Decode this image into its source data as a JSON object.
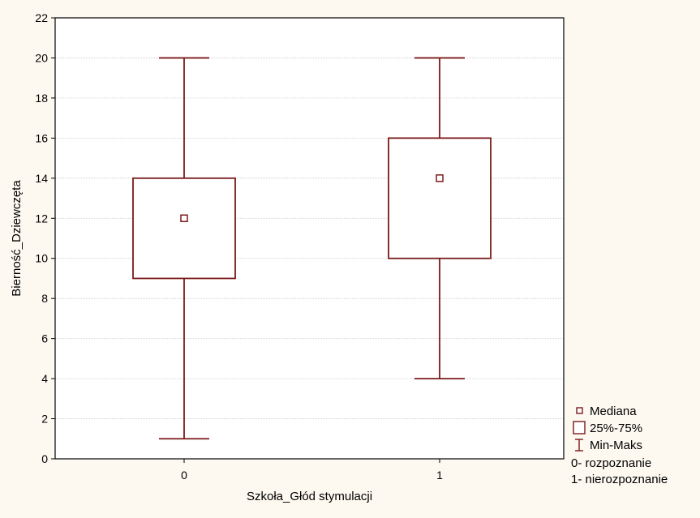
{
  "chart_data": {
    "type": "boxplot",
    "xlabel": "Szkoła_Głód stymulacji",
    "ylabel": "Bierność_Dziewczęta",
    "ylim": [
      0,
      22
    ],
    "yticks": [
      0,
      2,
      4,
      6,
      8,
      10,
      12,
      14,
      16,
      18,
      20,
      22
    ],
    "grid": true,
    "legend_position": "bottom-right",
    "categories": [
      "0",
      "1"
    ],
    "boxes": [
      {
        "category": "0",
        "min": 1,
        "q1": 9,
        "median": 12,
        "q3": 14,
        "max": 20
      },
      {
        "category": "1",
        "min": 4,
        "q1": 10,
        "median": 14,
        "q3": 16,
        "max": 20
      }
    ],
    "legend": {
      "median": "Mediana",
      "box": "25%-75%",
      "whisker": "Min-Maks",
      "notes": [
        "0- rozpoznanie",
        "1- nierozpoznanie"
      ]
    },
    "colors": {
      "series": "#7a1a1a",
      "background": "#fdf9f0",
      "plot_area": "#ffffff",
      "grid": "#c8c8c8"
    }
  }
}
